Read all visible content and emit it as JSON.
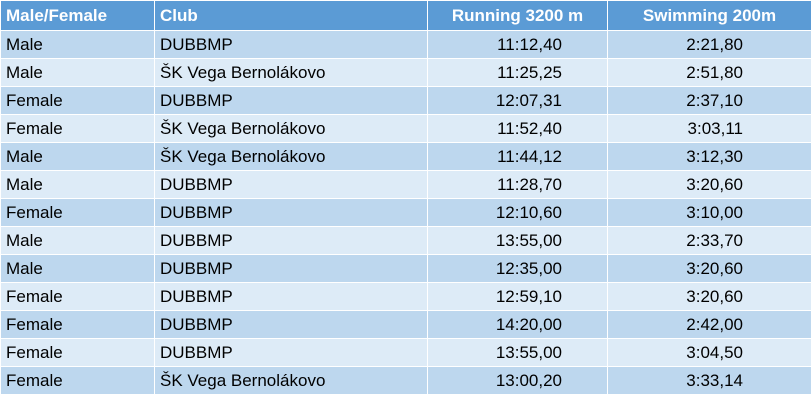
{
  "table": {
    "headers": [
      "Male/Female",
      "Club",
      "Running 3200 m",
      "Swimming 200m"
    ],
    "rows": [
      [
        "Male",
        "DUBBMP",
        "11:12,40",
        "2:21,80"
      ],
      [
        "Male",
        "ŠK Vega Bernolákovo",
        "11:25,25",
        "2:51,80"
      ],
      [
        "Female",
        "DUBBMP",
        "12:07,31",
        "2:37,10"
      ],
      [
        "Female",
        "ŠK Vega Bernolákovo",
        "11:52,40",
        "3:03,11"
      ],
      [
        "Male",
        "ŠK Vega Bernolákovo",
        "11:44,12",
        "3:12,30"
      ],
      [
        "Male",
        "DUBBMP",
        "11:28,70",
        "3:20,60"
      ],
      [
        "Female",
        "DUBBMP",
        "12:10,60",
        "3:10,00"
      ],
      [
        "Male",
        "DUBBMP",
        "13:55,00",
        "2:33,70"
      ],
      [
        "Male",
        "DUBBMP",
        "12:35,00",
        "3:20,60"
      ],
      [
        "Female",
        "DUBBMP",
        "12:59,10",
        "3:20,60"
      ],
      [
        "Female",
        "DUBBMP",
        "14:20,00",
        "2:42,00"
      ],
      [
        "Female",
        "DUBBMP",
        "13:55,00",
        "3:04,50"
      ],
      [
        "Female",
        "ŠK Vega Bernolákovo",
        "13:00,20",
        "3:33,14"
      ]
    ]
  },
  "colors": {
    "header_bg": "#5b9bd5",
    "header_text": "#ffffff",
    "row_dark": "#bdd7ee",
    "row_light": "#ddebf7"
  }
}
